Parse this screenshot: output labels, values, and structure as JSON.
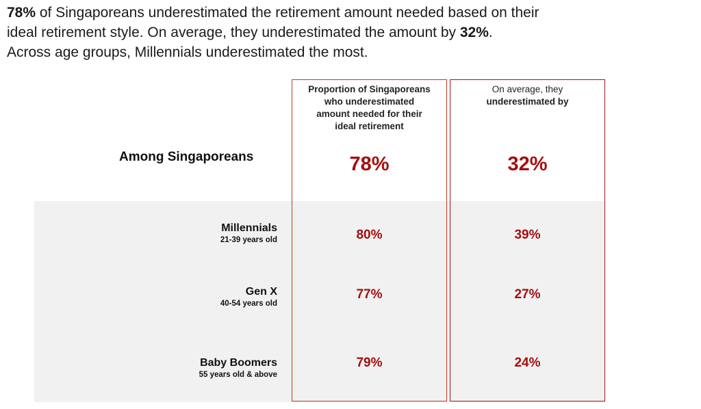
{
  "headline": {
    "line1_bold": "78%",
    "line1_rest": " of Singaporeans underestimated the retirement amount needed based on their",
    "line2_rest": "ideal retirement style. On average, they underestimated the amount by ",
    "line2_bold": "32%",
    "line2_end": ".",
    "line3": "Across age groups, Millennials underestimated the most."
  },
  "columns": {
    "col1_header": [
      "Proportion of Singaporeans",
      "who underestimated",
      "amount needed for their",
      "ideal retirement"
    ],
    "col2_header": [
      "On average, they",
      "underestimated by"
    ]
  },
  "overall": {
    "label": "Among Singaporeans",
    "proportion": "78%",
    "average": "32%"
  },
  "rows": [
    {
      "name": "Millennials",
      "sub": "21-39 years old",
      "proportion": "80%",
      "average": "39%"
    },
    {
      "name": "Gen X",
      "sub": "40-54 years old",
      "proportion": "77%",
      "average": "27%"
    },
    {
      "name": "Baby Boomers",
      "sub": "55 years old & above",
      "proportion": "79%",
      "average": "24%"
    }
  ],
  "colors": {
    "accent_red": "#a50e0e",
    "band_grey": "#f1f1f1"
  }
}
